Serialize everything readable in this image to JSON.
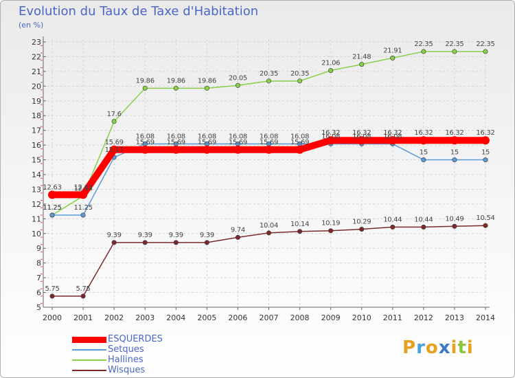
{
  "header": {
    "title": "Evolution du Taux de Taxe d'Habitation",
    "unit": "(en %)"
  },
  "logo": {
    "text": "Proxiti",
    "letters": [
      {
        "ch": "P",
        "color": "#e8a020"
      },
      {
        "ch": "r",
        "color": "#4aa0d8"
      },
      {
        "ch": "o",
        "color": "#e8a020"
      },
      {
        "ch": "x",
        "color": "#3c78c8"
      },
      {
        "ch": "i",
        "color": "#e8a020"
      },
      {
        "ch": "t",
        "color": "#8cc63f"
      },
      {
        "ch": "i",
        "color": "#e8a020"
      }
    ]
  },
  "chart_data": {
    "type": "line",
    "x": [
      "2000",
      "2001",
      "2002",
      "2003",
      "2004",
      "2005",
      "2006",
      "2007",
      "2008",
      "2009",
      "2010",
      "2011",
      "2012",
      "2013",
      "2014"
    ],
    "ylim": [
      5,
      23
    ],
    "yticks": [
      5,
      6,
      7,
      8,
      9,
      10,
      11,
      12,
      13,
      14,
      15,
      16,
      17,
      18,
      19,
      20,
      21,
      22,
      23
    ],
    "grid": true,
    "legend_position": "bottom-left",
    "series": [
      {
        "name": "ESQUERDES",
        "color": "#ff0000",
        "style": "thick",
        "values": [
          12.63,
          12.63,
          15.69,
          15.69,
          15.69,
          15.69,
          15.69,
          15.69,
          15.69,
          16.32,
          16.32,
          16.32,
          16.32,
          16.32,
          16.32
        ],
        "labels": [
          "12.63",
          "12.63",
          "15.69",
          "15.69",
          "15.69",
          "15.69",
          "15.69",
          "15.69",
          "15.69",
          "16.32",
          "16.32",
          "16.32",
          "16.32",
          "16.32",
          "16.32"
        ]
      },
      {
        "name": "Setques",
        "color": "#5b9bd5",
        "style": "thin",
        "values": [
          11.25,
          11.25,
          15.17,
          16.08,
          16.08,
          16.08,
          16.08,
          16.08,
          16.08,
          16.08,
          16.08,
          16.08,
          15,
          15,
          15
        ],
        "labels": [
          "11.25",
          "11.25",
          "15.17",
          "16.08",
          "16.08",
          "16.08",
          "16.08",
          "16.08",
          "16.08",
          "16.08",
          "16.08",
          "16.08",
          "15",
          "15",
          "15"
        ]
      },
      {
        "name": "Hallines",
        "color": "#88d048",
        "style": "thin",
        "values": [
          11.25,
          12.54,
          17.6,
          19.86,
          19.86,
          19.86,
          20.05,
          20.35,
          20.35,
          21.06,
          21.48,
          21.91,
          22.35,
          22.35,
          22.35
        ],
        "labels": [
          "11.25",
          "12.54",
          "17.6",
          "19.86",
          "19.86",
          "19.86",
          "20.05",
          "20.35",
          "20.35",
          "21.06",
          "21.48",
          "21.91",
          "22.35",
          "22.35",
          "22.35"
        ]
      },
      {
        "name": "Wisques",
        "color": "#7a2a2a",
        "style": "thin",
        "values": [
          5.75,
          5.75,
          9.39,
          9.39,
          9.39,
          9.39,
          9.74,
          10.04,
          10.14,
          10.19,
          10.29,
          10.44,
          10.44,
          10.49,
          10.54
        ],
        "labels": [
          "5.75",
          "5.75",
          "9.39",
          "9.39",
          "9.39",
          "9.39",
          "9.74",
          "10.04",
          "10.14",
          "10.19",
          "10.29",
          "10.44",
          "10.44",
          "10.49",
          "10.54"
        ]
      }
    ]
  }
}
